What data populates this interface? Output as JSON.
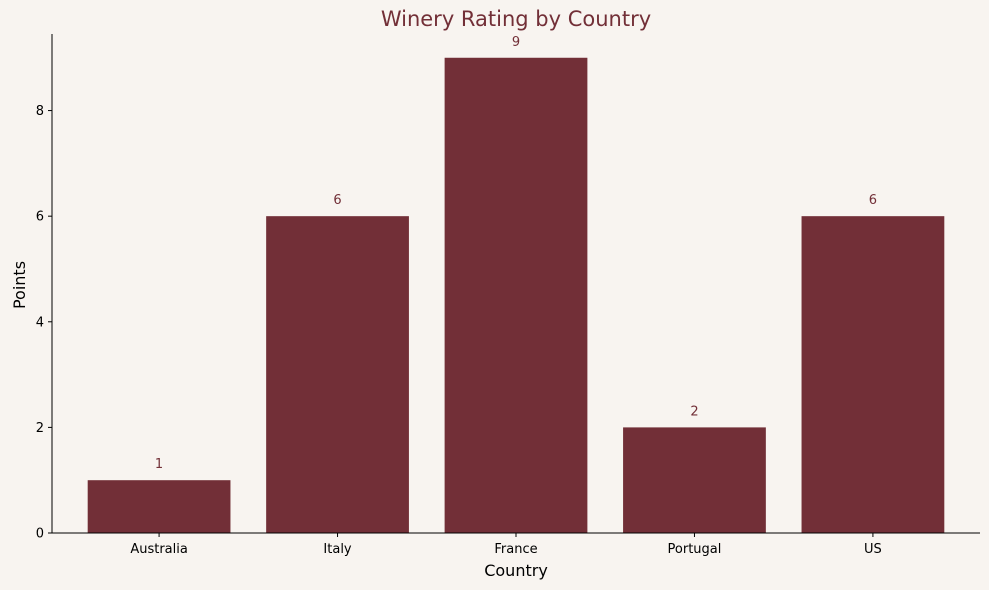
{
  "chart_data": {
    "type": "bar",
    "title": "Winery Rating by Country",
    "xlabel": "Country",
    "ylabel": "Points",
    "categories": [
      "Australia",
      "Italy",
      "France",
      "Portugal",
      "US"
    ],
    "values": [
      1,
      6,
      9,
      2,
      6
    ],
    "ylim": [
      0,
      9.45
    ],
    "yticks": [
      0,
      2,
      4,
      6,
      8
    ],
    "grid": false,
    "colors": {
      "bar": "#722f37",
      "title": "#722f37",
      "data_label": "#722f37",
      "background": "#f8f4f0",
      "axis": "#000000"
    }
  }
}
